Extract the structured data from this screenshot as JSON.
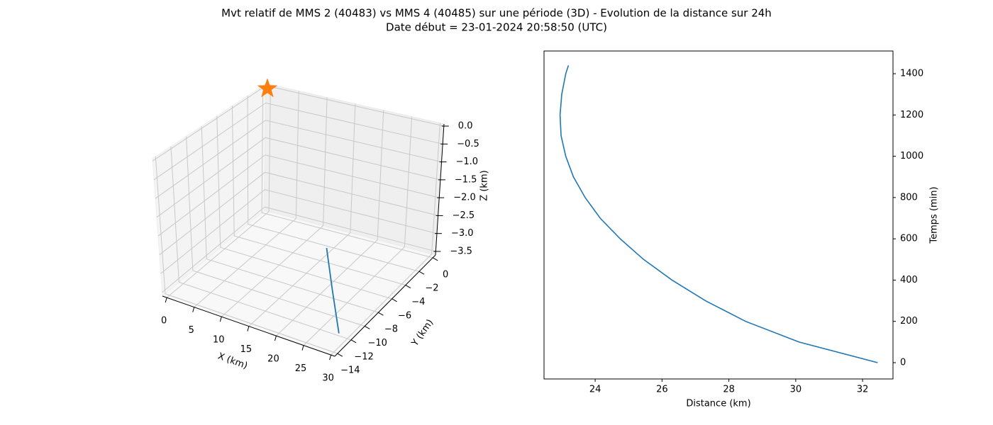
{
  "figure": {
    "title": "Mvt relatif de MMS 2 (40483) vs MMS 4 (40485) sur une période (3D) - Evolution de la distance sur 24h",
    "subtitle": "Date début = 23-01-2024 20:58:50 (UTC)"
  },
  "chart_data": [
    {
      "type": "line3d",
      "xlabel": "X (km)",
      "ylabel": "Y (km)",
      "zlabel": "Z (km)",
      "xlim": [
        -0.8,
        30.7
      ],
      "ylim": [
        -14.4,
        0.4
      ],
      "zlim": [
        -3.6,
        0.06
      ],
      "xticks": [
        0,
        5,
        10,
        15,
        20,
        25,
        30
      ],
      "yticks": [
        {
          "value": 0,
          "label": "0"
        },
        {
          "value": -2,
          "label": "−2"
        },
        {
          "value": -4,
          "label": "−4"
        },
        {
          "value": -6,
          "label": "−6"
        },
        {
          "value": -8,
          "label": "−8"
        },
        {
          "value": -10,
          "label": "−10"
        },
        {
          "value": -12,
          "label": "−12"
        },
        {
          "value": -14,
          "label": "−14"
        }
      ],
      "zticks": [
        {
          "value": 0,
          "label": "0.0"
        },
        {
          "value": -0.5,
          "label": "−0.5"
        },
        {
          "value": -1,
          "label": "−1.0"
        },
        {
          "value": -1.5,
          "label": "−1.5"
        },
        {
          "value": -2,
          "label": "−2.0"
        },
        {
          "value": -2.5,
          "label": "−2.5"
        },
        {
          "value": -3,
          "label": "−3.0"
        },
        {
          "value": -3.5,
          "label": "−3.5"
        }
      ],
      "series": [
        {
          "color": "#1f77b4",
          "x": [
            29,
            27.5,
            26
          ],
          "y": [
            -12.4,
            -12.0,
            -11.5
          ],
          "z": [
            -3.45,
            -2.5,
            -1.6
          ]
        },
        {
          "color": "#ff7f0e",
          "marker": "star",
          "x": [
            0
          ],
          "y": [
            0
          ],
          "z": [
            0
          ]
        }
      ]
    },
    {
      "type": "line",
      "xlabel": "Distance (km)",
      "ylabel": "Temps (min)",
      "xlim": [
        22.47,
        32.91
      ],
      "ylim": [
        -79,
        1510
      ],
      "xticks": [
        24,
        26,
        28,
        30,
        32
      ],
      "yticks": [
        0,
        200,
        400,
        600,
        800,
        1000,
        1200,
        1400
      ],
      "y_axis_side": "right",
      "color": "#1f77b4",
      "x": [
        32.45,
        30.1,
        28.5,
        27.3,
        26.3,
        25.45,
        24.75,
        24.15,
        23.7,
        23.35,
        23.12,
        22.98,
        22.95,
        23.0,
        23.12,
        23.2
      ],
      "y": [
        0,
        100,
        200,
        300,
        400,
        500,
        600,
        700,
        800,
        900,
        1000,
        1100,
        1200,
        1300,
        1400,
        1440
      ]
    }
  ]
}
